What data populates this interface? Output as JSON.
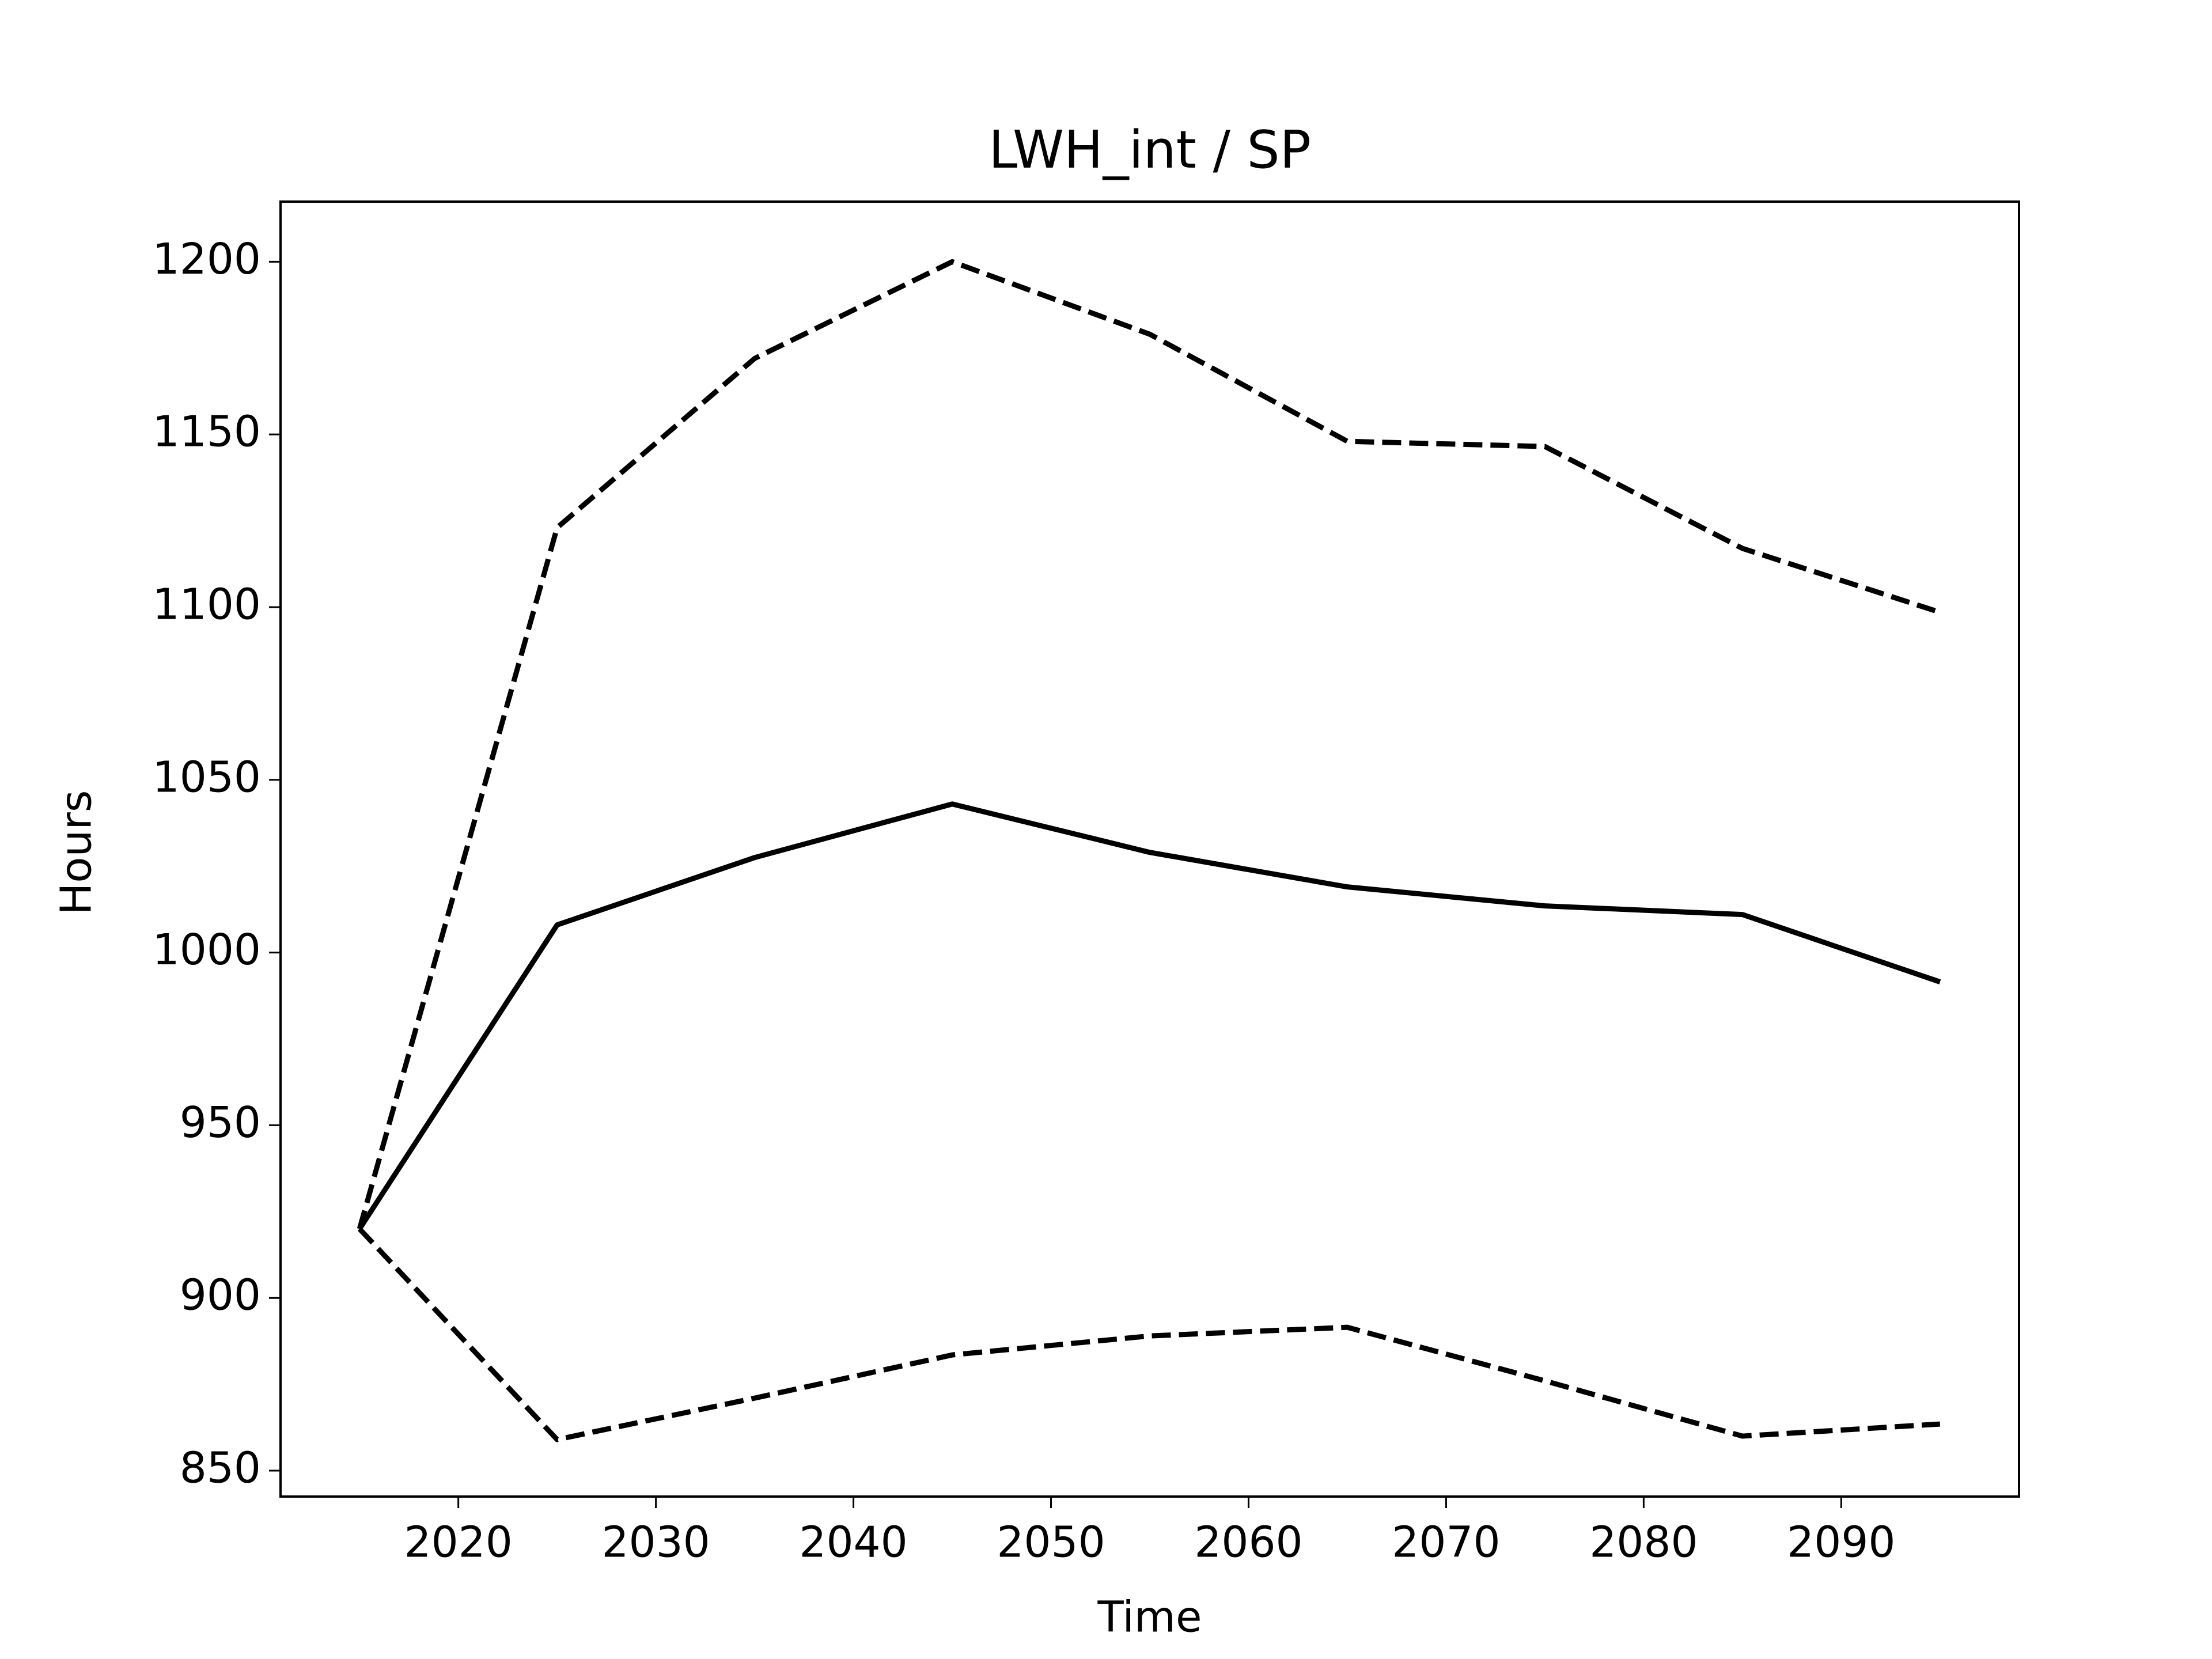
{
  "chart_data": {
    "type": "line",
    "title": "LWH_int / SP",
    "x_label": "Time",
    "y_label": "Hours",
    "x": [
      2015,
      2025,
      2035,
      2045,
      2055,
      2065,
      2075,
      2085,
      2095
    ],
    "series": [
      {
        "color": "#000000",
        "linestyle": "dashed",
        "values": [
          920,
          1123,
          1172,
          1200,
          1179,
          1148,
          1146.5,
          1117,
          1098.5
        ]
      },
      {
        "color": "#000000",
        "linestyle": "solid",
        "values": [
          920,
          1008,
          1027.5,
          1043,
          1029,
          1019,
          1013.5,
          1011,
          991.5
        ]
      },
      {
        "color": "#000000",
        "linestyle": "dashed",
        "values": [
          920,
          859,
          871,
          883.5,
          889,
          891.5,
          876,
          860,
          863.5
        ]
      }
    ],
    "xlim": [
      2011,
      2099
    ],
    "xticks": [
      2020,
      2030,
      2040,
      2050,
      2060,
      2070,
      2080,
      2090
    ],
    "ylim": [
      842.5,
      1217.4
    ],
    "yticks": [
      850,
      900,
      950,
      1000,
      1050,
      1100,
      1150,
      1200
    ],
    "grid": false
  }
}
